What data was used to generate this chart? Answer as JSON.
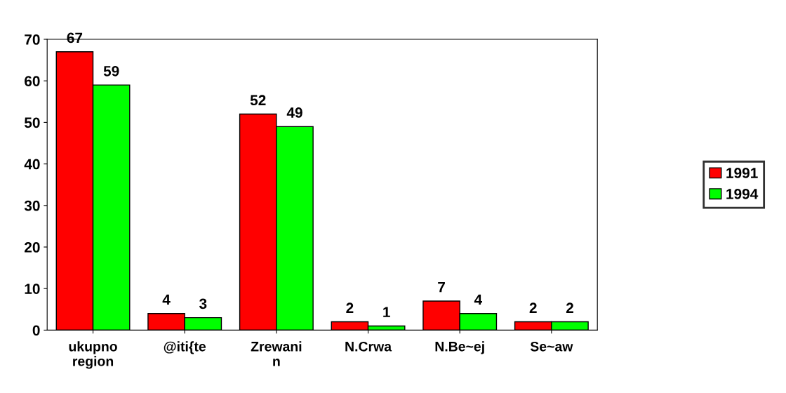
{
  "chart_data": {
    "type": "bar",
    "categories": [
      "ukupno\nregion",
      "@iti{te",
      "Zrewani\nn",
      "N.Crwa",
      "N.Be~ej",
      "Se~aw"
    ],
    "series": [
      {
        "name": "1991",
        "color": "#ff0000",
        "values": [
          67,
          4,
          52,
          2,
          7,
          2
        ]
      },
      {
        "name": "1994",
        "color": "#00ff00",
        "values": [
          59,
          3,
          49,
          1,
          4,
          2
        ]
      }
    ],
    "ylim": [
      0,
      70
    ],
    "yticks": [
      0,
      10,
      20,
      30,
      40,
      50,
      60,
      70
    ],
    "data_labels": true,
    "grid": false,
    "legend": "right"
  }
}
